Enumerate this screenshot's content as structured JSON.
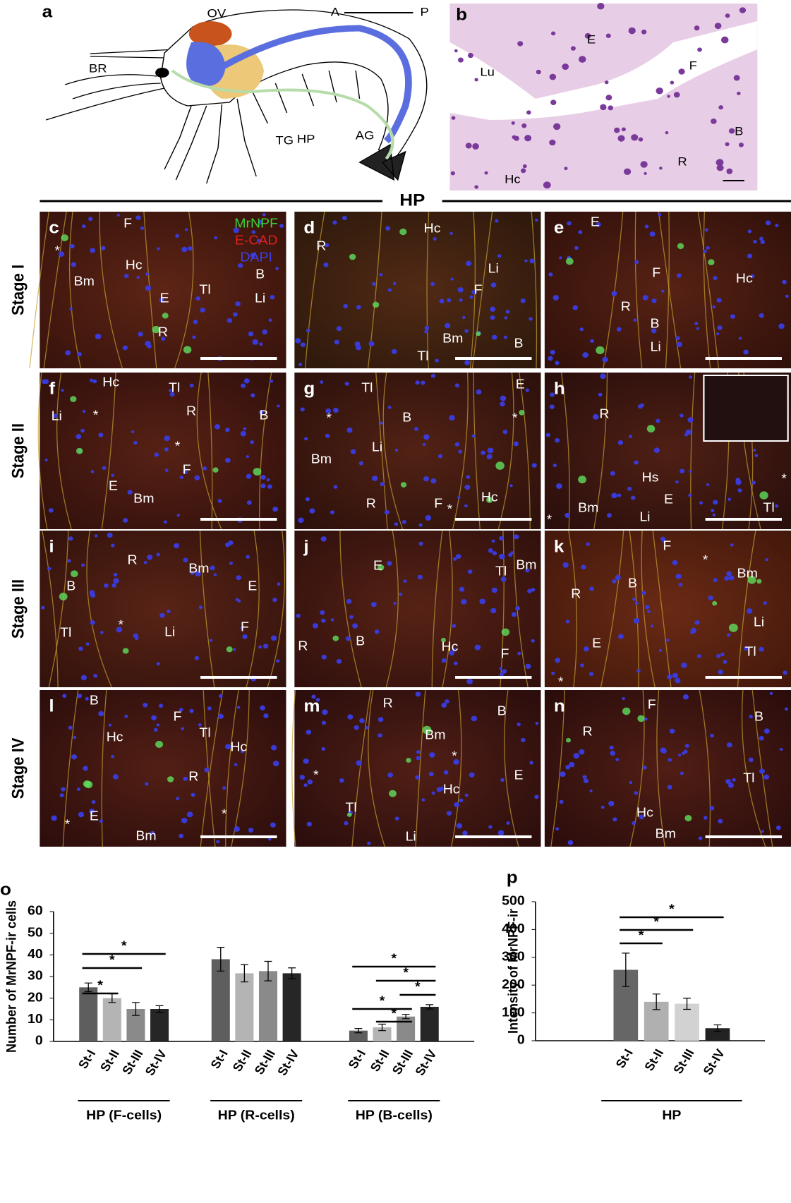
{
  "figure": {
    "panel_a": {
      "letter": "a",
      "labels": [
        "OV",
        "BR",
        "HP",
        "TG",
        "AG"
      ],
      "arrow": [
        "A",
        "P"
      ]
    },
    "panel_b": {
      "letter": "b",
      "labels": [
        "E",
        "F",
        "Lu",
        "B",
        "R",
        "Hc"
      ]
    },
    "section_title": "HP",
    "stage_labels": [
      "Stage I",
      "Stage II",
      "Stage III",
      "Stage IV"
    ],
    "channel_legend": [
      "MrNPF",
      "E-CAD",
      "DAPI"
    ],
    "micrographs": [
      {
        "letter": "c",
        "labels": [
          "F",
          "*",
          "Hc",
          "B",
          "Bm",
          "E",
          "Tl",
          "Li",
          "R"
        ]
      },
      {
        "letter": "d",
        "labels": [
          "Hc",
          "R",
          "Li",
          "F",
          "Bm",
          "B",
          "Tl"
        ]
      },
      {
        "letter": "e",
        "labels": [
          "E",
          "F",
          "Hc",
          "R",
          "B",
          "Li"
        ]
      },
      {
        "letter": "f",
        "labels": [
          "Hc",
          "Tl",
          "Li",
          "R",
          "B",
          "*",
          "*",
          "F",
          "E",
          "Bm"
        ]
      },
      {
        "letter": "g",
        "labels": [
          "Tl",
          "E",
          "*",
          "*",
          "B",
          "Li",
          "Bm",
          "R",
          "F",
          "*",
          "Hc"
        ]
      },
      {
        "letter": "h",
        "labels": [
          "R",
          "Hs",
          "E",
          "Bm",
          "Li",
          "Tl",
          "*",
          "*"
        ]
      },
      {
        "letter": "i",
        "labels": [
          "R",
          "Bm",
          "B",
          "E",
          "*",
          "F",
          "Li",
          "Tl"
        ]
      },
      {
        "letter": "j",
        "labels": [
          "E",
          "Tl",
          "Bm",
          "B",
          "Hc",
          "F",
          "R"
        ]
      },
      {
        "letter": "k",
        "labels": [
          "F",
          "*",
          "B",
          "Bm",
          "R",
          "Li",
          "E",
          "Tl",
          "*"
        ]
      },
      {
        "letter": "l",
        "labels": [
          "B",
          "F",
          "Hc",
          "Tl",
          "Hc",
          "R",
          "*",
          "E",
          "Bm",
          "*"
        ]
      },
      {
        "letter": "m",
        "labels": [
          "R",
          "B",
          "Bm",
          "*",
          "*",
          "Hc",
          "E",
          "Tl",
          "Li"
        ]
      },
      {
        "letter": "n",
        "labels": [
          "F",
          "B",
          "R",
          "Tl",
          "Hc",
          "Bm"
        ]
      }
    ]
  },
  "chart_data": [
    {
      "type": "bar",
      "letter": "o",
      "ylabel": "Number of MrNPF-ir cells",
      "ylim": [
        0,
        60
      ],
      "yticks": [
        0,
        10,
        20,
        30,
        40,
        50,
        60
      ],
      "colors": [
        "#5e5e5e",
        "#b4b4b4",
        "#8a8a8a",
        "#262626"
      ],
      "groups": [
        {
          "name": "HP (F-cells)",
          "categories": [
            "St-I",
            "St-II",
            "St-III",
            "St-IV"
          ],
          "values": [
            25,
            20,
            15,
            15
          ],
          "errors": [
            2,
            2,
            3,
            1.5
          ],
          "significance": [
            {
              "from": 0,
              "to": 1,
              "label": "*"
            },
            {
              "from": 0,
              "to": 2,
              "label": "*"
            },
            {
              "from": 0,
              "to": 3,
              "label": "*"
            }
          ]
        },
        {
          "name": "HP (R-cells)",
          "categories": [
            "St-I",
            "St-II",
            "St-III",
            "St-IV"
          ],
          "values": [
            38,
            31.5,
            32.5,
            31.5
          ],
          "errors": [
            5.5,
            4,
            4.5,
            2.5
          ],
          "significance": []
        },
        {
          "name": "HP (B-cells)",
          "categories": [
            "St-I",
            "St-II",
            "St-III",
            "St-IV"
          ],
          "values": [
            5,
            6.5,
            11.5,
            16
          ],
          "errors": [
            1,
            1.5,
            1,
            1
          ],
          "significance": [
            {
              "from": 1,
              "to": 2,
              "label": "*"
            },
            {
              "from": 0,
              "to": 2,
              "label": "*"
            },
            {
              "from": 2,
              "to": 3,
              "label": "*"
            },
            {
              "from": 1,
              "to": 3,
              "label": "*"
            },
            {
              "from": 0,
              "to": 3,
              "label": "*"
            }
          ]
        }
      ]
    },
    {
      "type": "bar",
      "letter": "p",
      "ylabel": "Intensity of MrNPF-ir",
      "ylim": [
        0,
        500
      ],
      "yticks": [
        0,
        100,
        200,
        300,
        400,
        500
      ],
      "colors": [
        "#666666",
        "#b0b0b0",
        "#d2d2d2",
        "#222222"
      ],
      "groups": [
        {
          "name": "HP",
          "categories": [
            "St-I",
            "St-II",
            "St-III",
            "St-IV"
          ],
          "values": [
            255,
            140,
            133,
            45
          ],
          "errors": [
            60,
            28,
            20,
            12
          ],
          "significance": [
            {
              "from": 0,
              "to": 1,
              "label": "*"
            },
            {
              "from": 0,
              "to": 2,
              "label": "*"
            },
            {
              "from": 0,
              "to": 3,
              "label": "*"
            }
          ]
        }
      ]
    }
  ]
}
